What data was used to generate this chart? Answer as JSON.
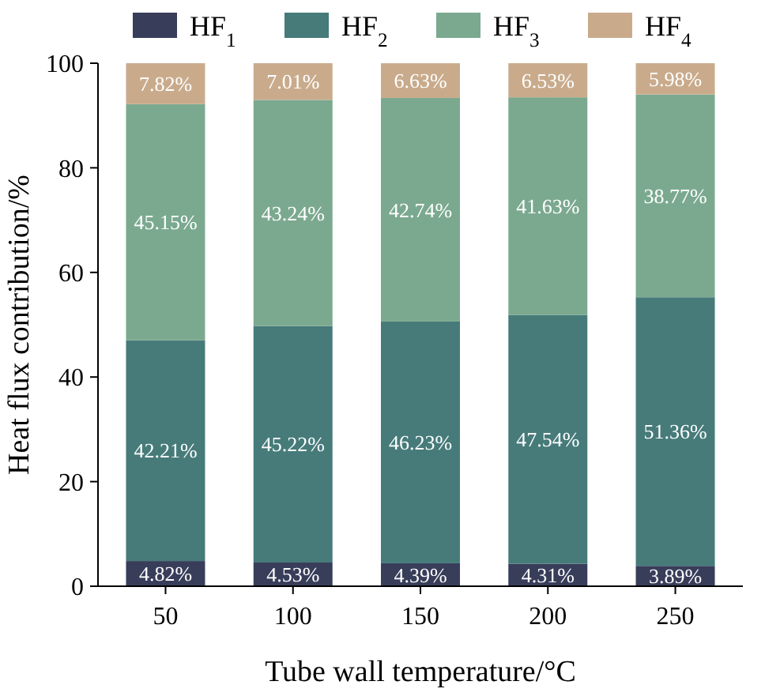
{
  "chart_data": {
    "type": "bar",
    "stacked": true,
    "xlabel": "Tube wall temperature/°C",
    "ylabel": "Heat flux contribution/%",
    "categories": [
      "50",
      "100",
      "150",
      "200",
      "250"
    ],
    "ylim": [
      0,
      100
    ],
    "yticks": [
      0,
      20,
      40,
      60,
      80,
      100
    ],
    "legend": "top",
    "series": [
      {
        "name": "HF$_{1}$",
        "color": "#383d5a",
        "values": [
          4.82,
          4.53,
          4.39,
          4.31,
          3.89
        ],
        "value_labels": [
          "4.82%",
          "4.53%",
          "4.39%",
          "4.31%",
          "3.89%"
        ]
      },
      {
        "name": "HF$_{2}$",
        "color": "#467b7a",
        "values": [
          42.21,
          45.22,
          46.23,
          47.54,
          51.36
        ],
        "value_labels": [
          "42.21%",
          "45.22%",
          "46.23%",
          "47.54%",
          "51.36%"
        ]
      },
      {
        "name": "HF$_{3}$",
        "color": "#7ba98f",
        "values": [
          45.15,
          43.24,
          42.74,
          41.63,
          38.77
        ],
        "value_labels": [
          "45.15%",
          "43.24%",
          "42.74%",
          "41.63%",
          "38.77%"
        ]
      },
      {
        "name": "HF$_{4}$",
        "color": "#c9ab8c",
        "values": [
          7.82,
          7.01,
          6.63,
          6.53,
          5.98
        ],
        "value_labels": [
          "7.82%",
          "7.01%",
          "6.63%",
          "6.53%",
          "5.98%"
        ]
      }
    ]
  }
}
